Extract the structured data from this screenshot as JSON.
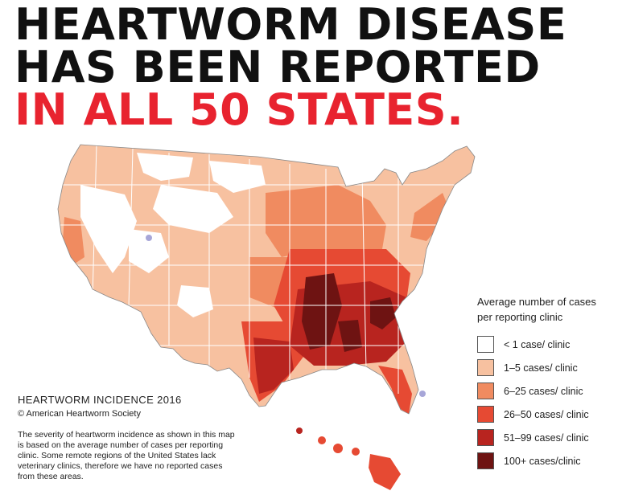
{
  "headline": {
    "line1": "HEARTWORM DISEASE",
    "line2": "HAS BEEN REPORTED",
    "line3": "IN ALL 50 STATES."
  },
  "colors": {
    "headline_black": "#111111",
    "headline_red": "#e8232f",
    "state_borders": "#ffffff",
    "sparse_marker": "#a7a6d8"
  },
  "legend": {
    "title": "Average number of cases per reporting clinic",
    "items": [
      {
        "label": "< 1 case/ clinic",
        "color": "#ffffff"
      },
      {
        "label": "1–5 cases/ clinic",
        "color": "#f7c1a0"
      },
      {
        "label": "6–25  cases/ clinic",
        "color": "#f08b60"
      },
      {
        "label": "26–50  cases/ clinic",
        "color": "#e64a33"
      },
      {
        "label": "51–99 cases/ clinic",
        "color": "#b8241f"
      },
      {
        "label": "100+ cases/clinic",
        "color": "#6e1312"
      }
    ]
  },
  "source": {
    "title": "HEARTWORM INCIDENCE 2016",
    "copyright": "© American Heartworm Society",
    "note": "The severity of heartworm incidence as shown in this map is based on the average number of cases per reporting clinic.  Some remote regions of the United States lack veterinary clinics, therefore we have no reported cases from these areas."
  },
  "map": {
    "regions": [
      {
        "name": "west",
        "level": "1–5 cases/ clinic"
      },
      {
        "name": "mountain-blank-areas",
        "level": "< 1 case/ clinic"
      },
      {
        "name": "plains",
        "level": "1–5 cases/ clinic"
      },
      {
        "name": "midwest",
        "level": "6–25  cases/ clinic"
      },
      {
        "name": "northeast",
        "level": "1–5 cases/ clinic"
      },
      {
        "name": "mid-south",
        "level": "26–50  cases/ clinic"
      },
      {
        "name": "southeast",
        "level": "51–99 cases/ clinic"
      },
      {
        "name": "mississippi-delta",
        "level": "100+ cases/clinic"
      },
      {
        "name": "hawaii",
        "level": "26–50  cases/ clinic"
      }
    ]
  }
}
